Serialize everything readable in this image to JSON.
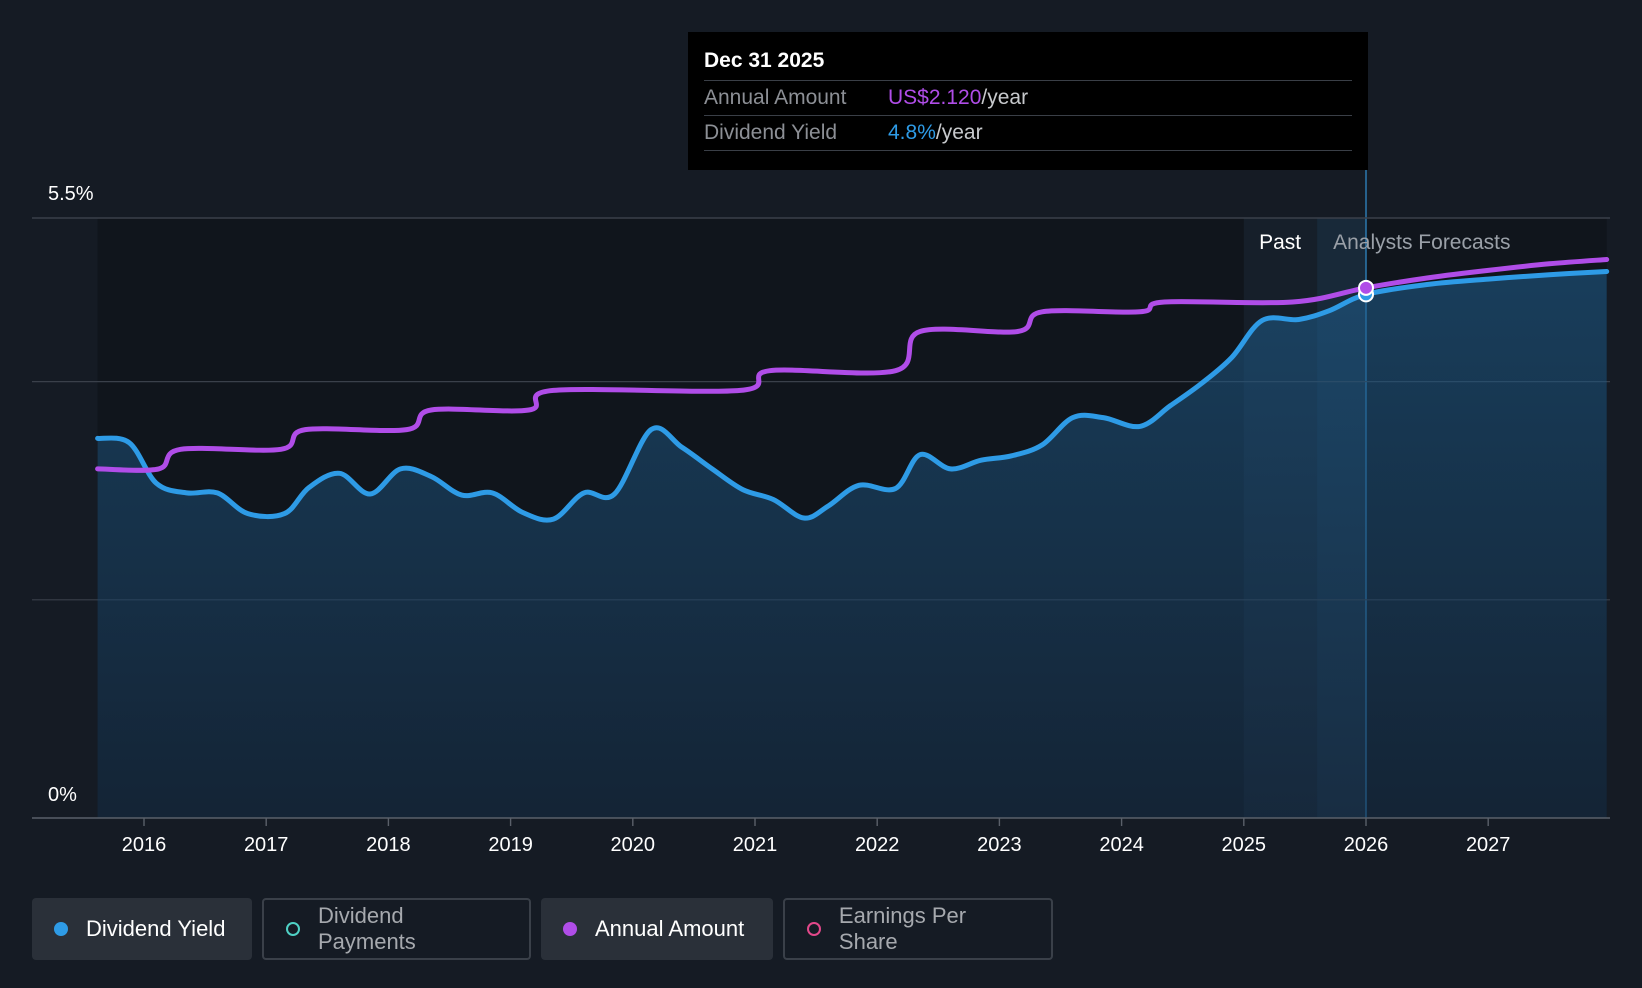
{
  "tooltip": {
    "date": "Dec 31 2025",
    "rows": [
      {
        "label": "Annual Amount",
        "value": "US$2.120",
        "unit": "/year"
      },
      {
        "label": "Dividend Yield",
        "value": "4.8%",
        "unit": "/year"
      }
    ]
  },
  "legend": [
    {
      "label": "Dividend Yield",
      "color": "#2e9be6",
      "filled": true,
      "active": true
    },
    {
      "label": "Dividend Payments",
      "color": "#4fd1c5",
      "filled": false,
      "active": false
    },
    {
      "label": "Annual Amount",
      "color": "#b04de8",
      "filled": true,
      "active": true
    },
    {
      "label": "Earnings Per Share",
      "color": "#e2488a",
      "filled": false,
      "active": false
    }
  ],
  "colors": {
    "background": "#151b24",
    "yield_line": "#2e9be6",
    "amount_line": "#b04de8",
    "grid": "#3a404a"
  },
  "chart_data": {
    "type": "line",
    "xlim": [
      2015.1,
      2027.97
    ],
    "ylim": [
      0,
      5.5
    ],
    "y_axis_labels": [
      {
        "value": 5.5,
        "text": "5.5%"
      },
      {
        "value": 0,
        "text": "0%"
      }
    ],
    "grid_y": [
      5.5,
      4.0,
      2.0
    ],
    "x_ticks": [
      2016,
      2017,
      2018,
      2019,
      2020,
      2021,
      2022,
      2023,
      2024,
      2025,
      2026,
      2027
    ],
    "regions": [
      {
        "label": "Past",
        "start": 2025.0,
        "end": 2025.6
      },
      {
        "label": "Analysts Forecasts",
        "start": 2025.6,
        "end": 2026.0
      }
    ],
    "highlight_x": 2026.0,
    "series": [
      {
        "name": "Dividend Yield",
        "color": "#2e9be6",
        "fill": true,
        "points": [
          [
            2015.62,
            3.48
          ],
          [
            2015.88,
            3.44
          ],
          [
            2016.1,
            3.07
          ],
          [
            2016.35,
            2.98
          ],
          [
            2016.6,
            2.98
          ],
          [
            2016.85,
            2.79
          ],
          [
            2017.15,
            2.79
          ],
          [
            2017.35,
            3.03
          ],
          [
            2017.6,
            3.16
          ],
          [
            2017.85,
            2.97
          ],
          [
            2018.1,
            3.2
          ],
          [
            2018.35,
            3.13
          ],
          [
            2018.6,
            2.96
          ],
          [
            2018.85,
            2.98
          ],
          [
            2019.1,
            2.8
          ],
          [
            2019.35,
            2.74
          ],
          [
            2019.6,
            2.98
          ],
          [
            2019.85,
            2.97
          ],
          [
            2020.15,
            3.56
          ],
          [
            2020.4,
            3.4
          ],
          [
            2020.65,
            3.2
          ],
          [
            2020.9,
            3.01
          ],
          [
            2021.15,
            2.92
          ],
          [
            2021.4,
            2.75
          ],
          [
            2021.6,
            2.86
          ],
          [
            2021.85,
            3.05
          ],
          [
            2022.15,
            3.02
          ],
          [
            2022.35,
            3.33
          ],
          [
            2022.6,
            3.2
          ],
          [
            2022.85,
            3.28
          ],
          [
            2023.1,
            3.32
          ],
          [
            2023.35,
            3.42
          ],
          [
            2023.6,
            3.67
          ],
          [
            2023.85,
            3.67
          ],
          [
            2024.15,
            3.59
          ],
          [
            2024.4,
            3.78
          ],
          [
            2024.65,
            3.98
          ],
          [
            2024.9,
            4.22
          ],
          [
            2025.15,
            4.56
          ],
          [
            2025.45,
            4.57
          ],
          [
            2025.7,
            4.65
          ],
          [
            2026.0,
            4.8
          ],
          [
            2026.5,
            4.89
          ],
          [
            2027.0,
            4.94
          ],
          [
            2027.5,
            4.98
          ],
          [
            2027.97,
            5.01
          ]
        ]
      },
      {
        "name": "Annual Amount",
        "color": "#b04de8",
        "fill": false,
        "points": [
          [
            2015.62,
            3.2
          ],
          [
            2016.12,
            3.2
          ],
          [
            2016.3,
            3.38
          ],
          [
            2017.12,
            3.38
          ],
          [
            2017.32,
            3.56
          ],
          [
            2018.15,
            3.56
          ],
          [
            2018.35,
            3.74
          ],
          [
            2019.15,
            3.74
          ],
          [
            2019.35,
            3.92
          ],
          [
            2020.88,
            3.92
          ],
          [
            2021.12,
            4.1
          ],
          [
            2022.15,
            4.1
          ],
          [
            2022.35,
            4.46
          ],
          [
            2023.15,
            4.46
          ],
          [
            2023.35,
            4.64
          ],
          [
            2024.15,
            4.64
          ],
          [
            2024.35,
            4.73
          ],
          [
            2025.4,
            4.73
          ],
          [
            2026.0,
            4.86
          ],
          [
            2026.5,
            4.95
          ],
          [
            2027.0,
            5.02
          ],
          [
            2027.5,
            5.08
          ],
          [
            2027.97,
            5.12
          ]
        ]
      }
    ]
  }
}
